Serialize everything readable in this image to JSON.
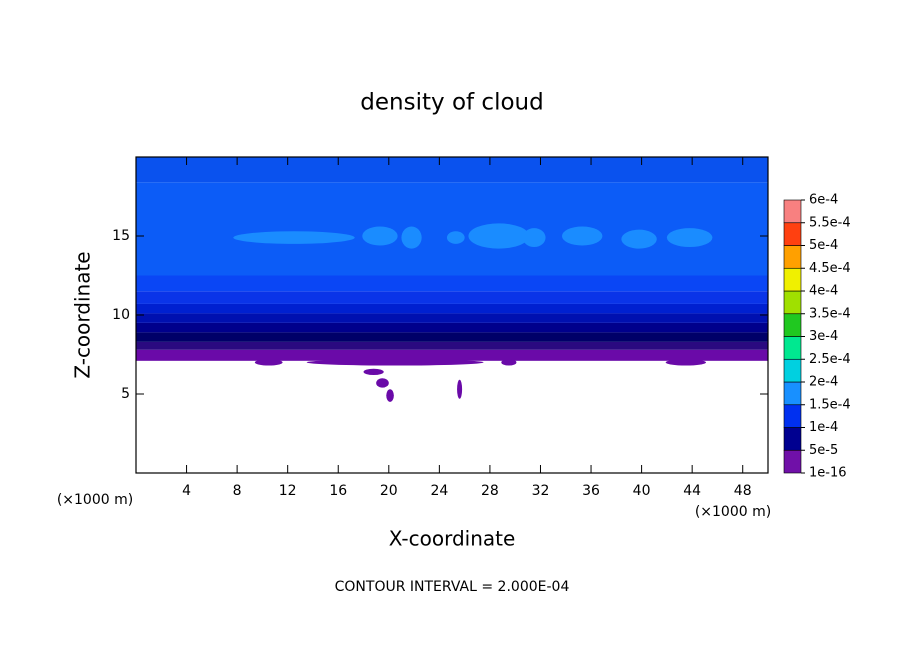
{
  "chart_data": {
    "type": "contour",
    "title": "density of cloud",
    "xlabel": "X-coordinate",
    "ylabel": "Z-coordinate",
    "xunit": "(×1000 m)",
    "yunit": "(×1000 m)",
    "note": "CONTOUR INTERVAL = 2.000E-04",
    "xlim": [
      0,
      50
    ],
    "ylim": [
      0,
      20
    ],
    "xticks": [
      4,
      8,
      12,
      16,
      20,
      24,
      28,
      32,
      36,
      40,
      44,
      48
    ],
    "yticks": [
      5,
      10,
      15
    ],
    "levels": [
      {
        "value": 1e-16,
        "label": "1e-16"
      },
      {
        "value": 5e-05,
        "label": "5e-5"
      },
      {
        "value": 0.0001,
        "label": "1e-4"
      },
      {
        "value": 0.00015,
        "label": "1.5e-4"
      },
      {
        "value": 0.0002,
        "label": "2e-4"
      },
      {
        "value": 0.00025,
        "label": "2.5e-4"
      },
      {
        "value": 0.0003,
        "label": "3e-4"
      },
      {
        "value": 0.00035,
        "label": "3.5e-4"
      },
      {
        "value": 0.0004,
        "label": "4e-4"
      },
      {
        "value": 0.00045,
        "label": "4.5e-4"
      },
      {
        "value": 0.0005,
        "label": "5e-4"
      },
      {
        "value": 0.00055,
        "label": "5.5e-4"
      },
      {
        "value": 0.0006,
        "label": "6e-4"
      }
    ],
    "level_colors": [
      "#7010a8",
      "#000090",
      "#0030f0",
      "#1890ff",
      "#00d0e0",
      "#00e890",
      "#20c820",
      "#a0e000",
      "#f0f000",
      "#ffa000",
      "#ff4010",
      "#f88080"
    ],
    "layers": [
      {
        "zmin": 7.1,
        "zmax": 7.8,
        "value": 2e-05,
        "color": "#6a0aa8"
      },
      {
        "zmin": 7.8,
        "zmax": 8.3,
        "value": 4e-05,
        "color": "#2a0a80"
      },
      {
        "zmin": 8.3,
        "zmax": 8.9,
        "value": 6e-05,
        "color": "#000068"
      },
      {
        "zmin": 8.9,
        "zmax": 9.5,
        "value": 7e-05,
        "color": "#00008c"
      },
      {
        "zmin": 9.5,
        "zmax": 10.1,
        "value": 8e-05,
        "color": "#0010b0"
      },
      {
        "zmin": 10.1,
        "zmax": 10.7,
        "value": 9e-05,
        "color": "#0020d0"
      },
      {
        "zmin": 10.7,
        "zmax": 11.5,
        "value": 0.0001,
        "color": "#0a34e8"
      },
      {
        "zmin": 11.5,
        "zmax": 12.5,
        "value": 0.00011,
        "color": "#0a46f5"
      },
      {
        "zmin": 12.5,
        "zmax": 18.4,
        "value": 0.00012,
        "color": "#0c5cf7"
      },
      {
        "zmin": 18.4,
        "zmax": 20,
        "value": 0.000115,
        "color": "#0a52ee"
      }
    ],
    "patches": [
      {
        "x": 12.5,
        "z": 14.9,
        "rx": 4.8,
        "rz": 0.4,
        "value": 0.00015,
        "color": "#1a8cff"
      },
      {
        "x": 19.3,
        "z": 15,
        "rx": 1.4,
        "rz": 0.6,
        "value": 0.00015,
        "color": "#1a8cff"
      },
      {
        "x": 21.8,
        "z": 14.9,
        "rx": 0.8,
        "rz": 0.7,
        "value": 0.00015,
        "color": "#1a8cff"
      },
      {
        "x": 25.3,
        "z": 14.9,
        "rx": 0.7,
        "rz": 0.4,
        "value": 0.00015,
        "color": "#1a8cff"
      },
      {
        "x": 28.7,
        "z": 15,
        "rx": 2.4,
        "rz": 0.8,
        "value": 0.00015,
        "color": "#1a8cff"
      },
      {
        "x": 31.5,
        "z": 14.9,
        "rx": 0.9,
        "rz": 0.6,
        "value": 0.00015,
        "color": "#1a8cff"
      },
      {
        "x": 35.3,
        "z": 15,
        "rx": 1.6,
        "rz": 0.6,
        "value": 0.00015,
        "color": "#1a8cff"
      },
      {
        "x": 39.8,
        "z": 14.8,
        "rx": 1.4,
        "rz": 0.6,
        "value": 0.00015,
        "color": "#1a8cff"
      },
      {
        "x": 43.8,
        "z": 14.9,
        "rx": 1.8,
        "rz": 0.6,
        "value": 0.00015,
        "color": "#1a8cff"
      },
      {
        "x": 10.5,
        "z": 7,
        "rx": 1.1,
        "rz": 0.2,
        "value": 2e-05,
        "color": "#6a0aa8"
      },
      {
        "x": 20.5,
        "z": 7,
        "rx": 7,
        "rz": 0.2,
        "value": 2e-05,
        "color": "#6a0aa8"
      },
      {
        "x": 29.5,
        "z": 7,
        "rx": 0.6,
        "rz": 0.2,
        "value": 2e-05,
        "color": "#6a0aa8"
      },
      {
        "x": 43.5,
        "z": 7,
        "rx": 1.6,
        "rz": 0.2,
        "value": 2e-05,
        "color": "#6a0aa8"
      },
      {
        "x": 18.8,
        "z": 6.4,
        "rx": 0.8,
        "rz": 0.2,
        "value": 2e-05,
        "color": "#6a0aa8"
      },
      {
        "x": 19.5,
        "z": 5.7,
        "rx": 0.5,
        "rz": 0.3,
        "value": 2e-05,
        "color": "#6a0aa8"
      },
      {
        "x": 20.1,
        "z": 4.9,
        "rx": 0.3,
        "rz": 0.4,
        "value": 2e-05,
        "color": "#6a0aa8"
      },
      {
        "x": 25.6,
        "z": 5.3,
        "rx": 0.2,
        "rz": 0.6,
        "value": 2e-05,
        "color": "#6a0aa8"
      }
    ]
  }
}
